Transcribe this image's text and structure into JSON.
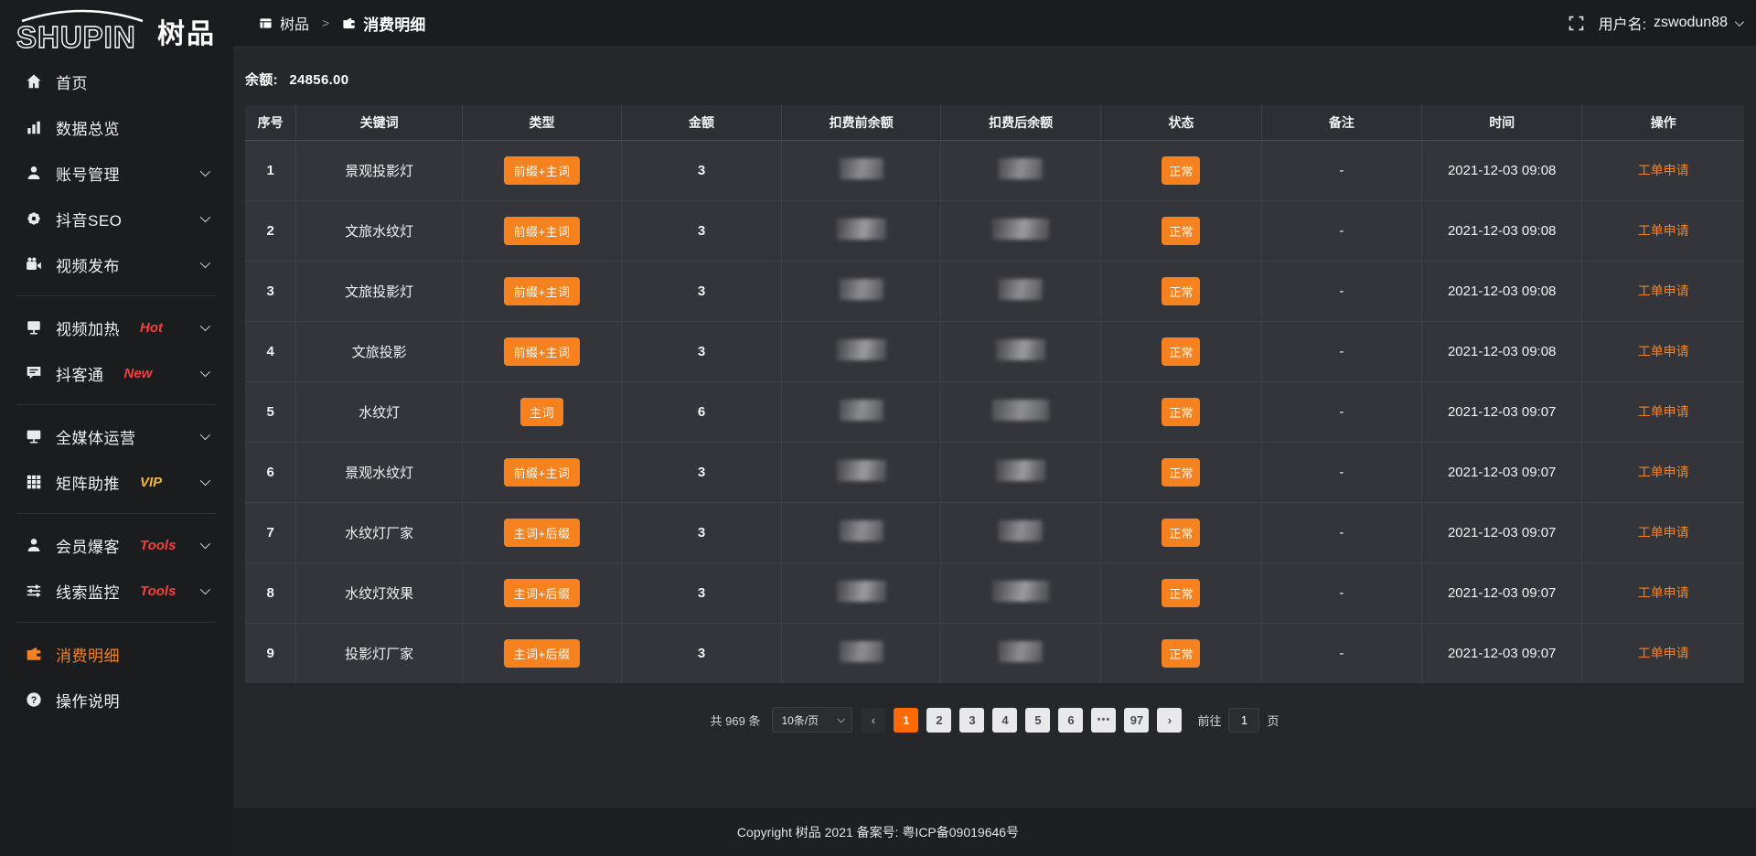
{
  "app": {
    "logo_en": "SHUPIN",
    "logo_cn": "树品"
  },
  "header": {
    "breadcrumb_root": "树品",
    "breadcrumb_separator": ">",
    "breadcrumb_current": "消费明细",
    "breadcrumb_root_icon": "window-icon",
    "breadcrumb_current_icon": "wallet-icon",
    "fullscreen_icon": "fullscreen-icon",
    "username_label": "用户名:",
    "username": "zswodun88"
  },
  "sidebar": {
    "items": [
      {
        "icon": "home-icon",
        "label": "首页"
      },
      {
        "icon": "chart-icon",
        "label": "数据总览"
      },
      {
        "icon": "user-icon",
        "label": "账号管理",
        "chevron": true
      },
      {
        "icon": "gear-icon",
        "label": "抖音SEO",
        "chevron": true
      },
      {
        "icon": "camera-icon",
        "label": "视频发布",
        "chevron": true
      },
      {
        "divider": true
      },
      {
        "icon": "screen-icon",
        "label": "视频加热",
        "badge": "Hot",
        "badge_class": "red",
        "chevron": true
      },
      {
        "icon": "comment-icon",
        "label": "抖客通",
        "badge": "New",
        "badge_class": "red",
        "chevron": true
      },
      {
        "divider": true
      },
      {
        "icon": "monitor-icon",
        "label": "全媒体运营",
        "chevron": true
      },
      {
        "icon": "grid-icon",
        "label": "矩阵助推",
        "badge": "VIP",
        "badge_class": "gold",
        "chevron": true
      },
      {
        "divider": true
      },
      {
        "icon": "member-icon",
        "label": "会员爆客",
        "badge": "Tools",
        "badge_class": "red",
        "chevron": true
      },
      {
        "icon": "sliders-icon",
        "label": "线索监控",
        "badge": "Tools",
        "badge_class": "red",
        "chevron": true
      },
      {
        "divider": true
      },
      {
        "icon": "wallet-icon",
        "label": "消费明细",
        "state": "active"
      },
      {
        "icon": "question-icon",
        "label": "操作说明"
      }
    ]
  },
  "balance": {
    "label": "余额:",
    "value": "24856.00"
  },
  "table": {
    "columns": [
      "序号",
      "关键词",
      "类型",
      "金额",
      "扣费前余额",
      "扣费后余额",
      "状态",
      "备注",
      "时间",
      "操作"
    ],
    "rows": [
      {
        "no": "1",
        "keyword": "景观投影灯",
        "type": "前缀+主词",
        "amount": "3",
        "status": "正常",
        "remark": "-",
        "time": "2021-12-03 09:08",
        "action": "工单申请"
      },
      {
        "no": "2",
        "keyword": "文旅水纹灯",
        "type": "前缀+主词",
        "amount": "3",
        "status": "正常",
        "remark": "-",
        "time": "2021-12-03 09:08",
        "action": "工单申请"
      },
      {
        "no": "3",
        "keyword": "文旅投影灯",
        "type": "前缀+主词",
        "amount": "3",
        "status": "正常",
        "remark": "-",
        "time": "2021-12-03 09:08",
        "action": "工单申请"
      },
      {
        "no": "4",
        "keyword": "文旅投影",
        "type": "前缀+主词",
        "amount": "3",
        "status": "正常",
        "remark": "-",
        "time": "2021-12-03 09:08",
        "action": "工单申请"
      },
      {
        "no": "5",
        "keyword": "水纹灯",
        "type": "主词",
        "amount": "6",
        "status": "正常",
        "remark": "-",
        "time": "2021-12-03 09:07",
        "action": "工单申请"
      },
      {
        "no": "6",
        "keyword": "景观水纹灯",
        "type": "前缀+主词",
        "amount": "3",
        "status": "正常",
        "remark": "-",
        "time": "2021-12-03 09:07",
        "action": "工单申请"
      },
      {
        "no": "7",
        "keyword": "水纹灯厂家",
        "type": "主词+后缀",
        "amount": "3",
        "status": "正常",
        "remark": "-",
        "time": "2021-12-03 09:07",
        "action": "工单申请"
      },
      {
        "no": "8",
        "keyword": "水纹灯效果",
        "type": "主词+后缀",
        "amount": "3",
        "status": "正常",
        "remark": "-",
        "time": "2021-12-03 09:07",
        "action": "工单申请"
      },
      {
        "no": "9",
        "keyword": "投影灯厂家",
        "type": "主词+后缀",
        "amount": "3",
        "status": "正常",
        "remark": "-",
        "time": "2021-12-03 09:07",
        "action": "工单申请"
      }
    ],
    "masked_columns": [
      "扣费前余额",
      "扣费后余额"
    ]
  },
  "pagination": {
    "total_label": "共 969 条",
    "page_size": "10条/页",
    "prev_label": "‹",
    "next_label": "›",
    "pages": [
      {
        "label": "1",
        "state": "active"
      },
      {
        "label": "2"
      },
      {
        "label": "3"
      },
      {
        "label": "4"
      },
      {
        "label": "5"
      },
      {
        "label": "6"
      },
      {
        "label": "•••",
        "state": "dots"
      },
      {
        "label": "97"
      }
    ],
    "goto_label": "前往",
    "goto_value": "1",
    "goto_unit": "页"
  },
  "footer": {
    "copyright": "Copyright 树品 2021 备案号: 粤ICP备09019646号"
  },
  "colors": {
    "accent_orange": "#f6821f",
    "page_active_orange": "#ff6a00",
    "hot_badge_red": "#f93e3e",
    "vip_badge_gold": "#f3b43a",
    "sidebar_bg": "#1b1c1e",
    "content_bg": "#26272a",
    "row_bg": "#34353a"
  }
}
